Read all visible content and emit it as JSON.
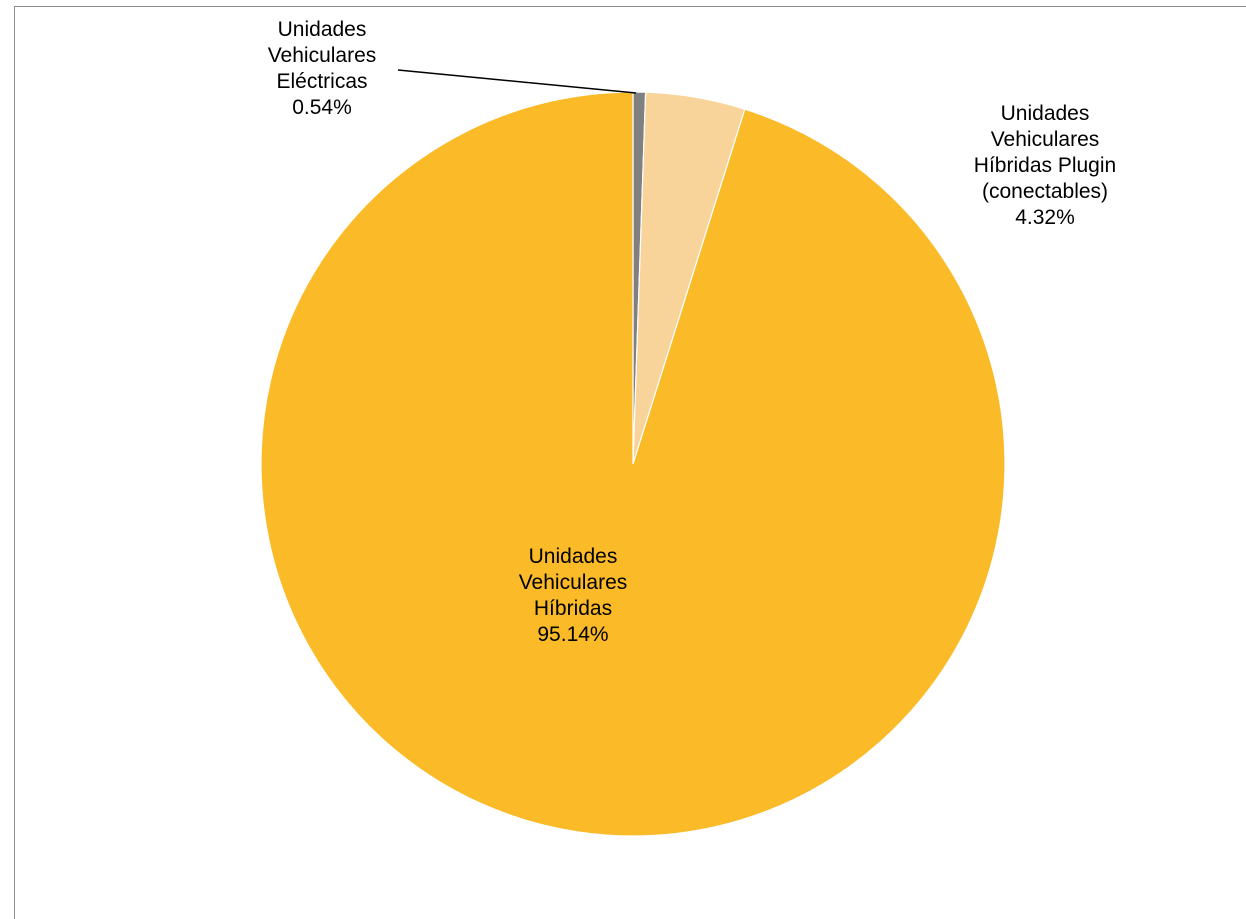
{
  "chart_data": {
    "type": "pie",
    "title": "",
    "start_angle_deg": 0,
    "direction": "clockwise",
    "slices": [
      {
        "label_lines": [
          "Unidades",
          "Vehiculares",
          "Eléctricas",
          "0.54%"
        ],
        "value": 0.54,
        "color": "#808080"
      },
      {
        "label_lines": [
          "Unidades",
          "Vehiculares",
          "Híbridas Plugin",
          "(conectables)",
          "4.32%"
        ],
        "value": 4.32,
        "color": "#f9d49a"
      },
      {
        "label_lines": [
          "Unidades",
          "Vehiculares",
          "Híbridas",
          "95.14%"
        ],
        "value": 95.14,
        "color": "#fbba27"
      }
    ],
    "legend": "none",
    "data_labels": "category-and-percent"
  }
}
